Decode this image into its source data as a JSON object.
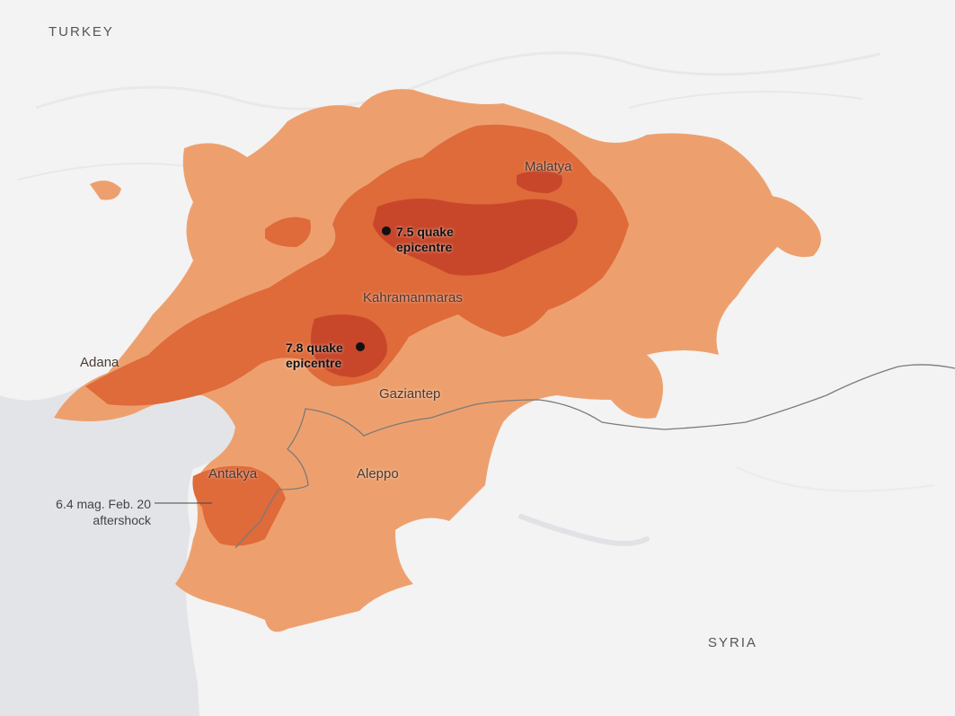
{
  "map": {
    "countries": [
      {
        "id": "turkey",
        "label": "TURKEY"
      },
      {
        "id": "syria",
        "label": "SYRIA"
      }
    ],
    "cities": [
      {
        "id": "malatya",
        "label": "Malatya"
      },
      {
        "id": "kahramanmaras",
        "label": "Kahramanmaras"
      },
      {
        "id": "adana",
        "label": "Adana"
      },
      {
        "id": "gaziantep",
        "label": "Gaziantep"
      },
      {
        "id": "antakya",
        "label": "Antakya"
      },
      {
        "id": "aleppo",
        "label": "Aleppo"
      }
    ],
    "epicentres": [
      {
        "id": "quake-7-5",
        "label_line1": "7.5 quake",
        "label_line2": "epicentre"
      },
      {
        "id": "quake-7-8",
        "label_line1": "7.8 quake",
        "label_line2": "epicentre"
      }
    ],
    "aftershock_note": {
      "line1": "6.4 mag. Feb. 20",
      "line2": "aftershock"
    },
    "colors": {
      "land": "#f3f3f3",
      "sea": "#e3e4e8",
      "outer_zone": "#eda06e",
      "middle_zone": "#df6a3a",
      "inner_zone": "#c8472a",
      "border": "#7a7a7a",
      "epicentre_dot": "#111111"
    }
  }
}
